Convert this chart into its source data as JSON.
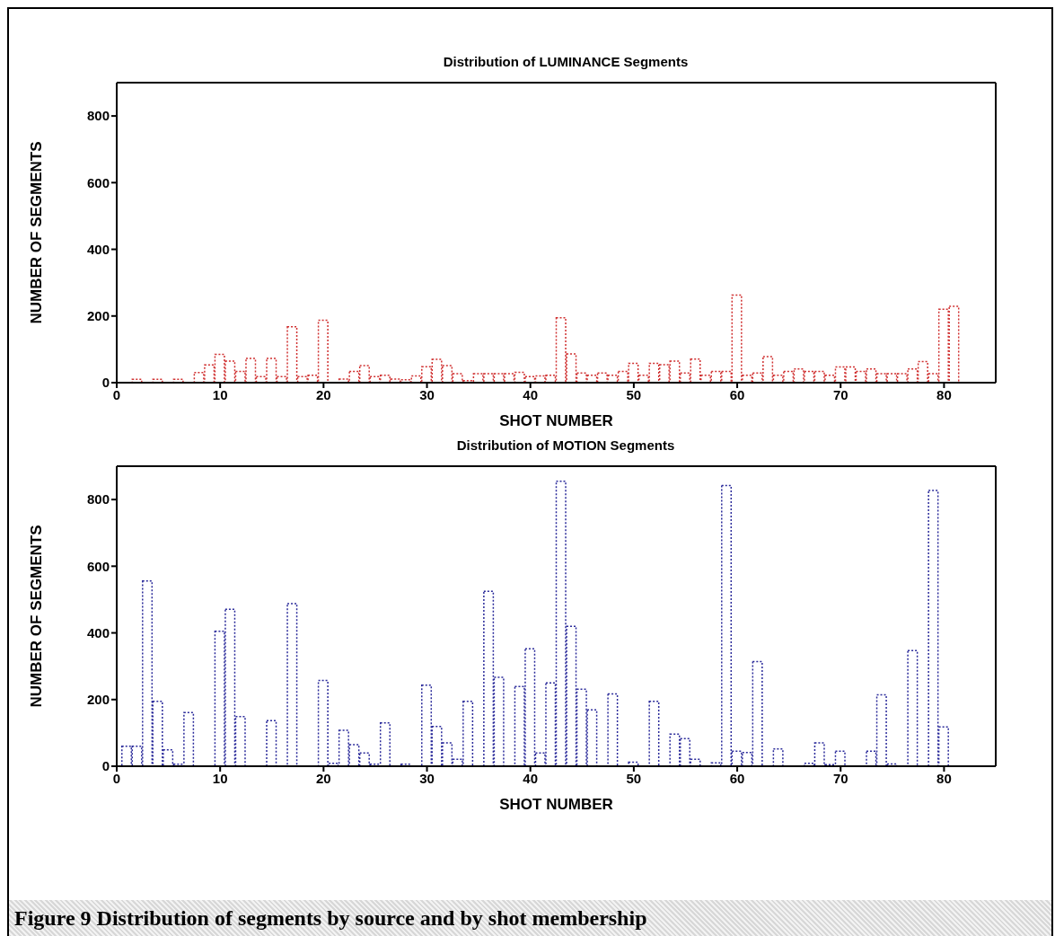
{
  "chart_data": [
    {
      "type": "histogram",
      "title": "Distribution of LUMINANCE Segments",
      "xlabel": "SHOT NUMBER",
      "ylabel": "NUMBER OF SEGMENTS",
      "color": "#d03030",
      "line_style": "dotted",
      "bins": [
        0.5,
        1.5,
        2.5,
        3.5,
        4.5,
        5.5,
        6.5,
        7.5,
        8.5,
        9.5,
        10.5,
        11.5,
        12.5,
        13.5,
        14.5,
        15.5,
        16.5,
        17.5,
        18.5,
        19.5,
        20.5,
        21.5,
        22.5,
        23.5,
        24.5,
        25.5,
        26.5,
        27.5,
        28.5,
        29.5,
        30.5,
        31.5,
        32.5,
        33.5,
        34.5,
        35.5,
        36.5,
        37.5,
        38.5,
        39.5,
        40.5,
        41.5,
        42.5,
        43.5,
        44.5,
        45.5,
        46.5,
        47.5,
        48.5,
        49.5,
        50.5,
        51.5,
        52.5,
        53.5,
        54.5,
        55.5,
        56.5,
        57.5,
        58.5,
        59.5,
        60.5,
        61.5,
        62.5,
        63.5,
        64.5,
        65.5,
        66.5,
        67.5,
        68.5,
        69.5,
        70.5,
        71.5,
        72.5,
        73.5,
        74.5,
        75.5,
        76.5,
        77.5,
        78.5,
        79.5,
        80.5,
        81.5
      ],
      "values": [
        0,
        10,
        null,
        10,
        null,
        10,
        0,
        30,
        53,
        85,
        65,
        34,
        73,
        18,
        73,
        18,
        168,
        18,
        22,
        187,
        0,
        11,
        34,
        51,
        18,
        22,
        11,
        9,
        20,
        48,
        70,
        51,
        27,
        6,
        27,
        27,
        27,
        27,
        31,
        18,
        20,
        22,
        195,
        86,
        29,
        22,
        29,
        22,
        34,
        58,
        22,
        58,
        54,
        65,
        29,
        71,
        22,
        34,
        34,
        263,
        22,
        29,
        78,
        22,
        34,
        41,
        34,
        34,
        22,
        47,
        47,
        34,
        41,
        27,
        27,
        27,
        41,
        63,
        27,
        220,
        229
      ],
      "xlim": [
        0,
        85
      ],
      "xticks": [
        0,
        10,
        20,
        30,
        40,
        50,
        60,
        70,
        80
      ],
      "ylim": [
        0,
        900
      ],
      "yticks": [
        0,
        200,
        400,
        600,
        800
      ]
    },
    {
      "type": "histogram",
      "title": "Distribution of MOTION Segments",
      "xlabel": "SHOT NUMBER",
      "ylabel": "NUMBER OF SEGMENTS",
      "color": "#2a2a9a",
      "line_style": "dotted",
      "bins": [
        0.5,
        1.5,
        2.5,
        3.5,
        4.5,
        5.5,
        6.5,
        7.5,
        8.5,
        9.5,
        10.5,
        11.5,
        12.5,
        13.5,
        14.5,
        15.5,
        16.5,
        17.5,
        18.5,
        19.5,
        20.5,
        21.5,
        22.5,
        23.5,
        24.5,
        25.5,
        26.5,
        27.5,
        28.5,
        29.5,
        30.5,
        31.5,
        32.5,
        33.5,
        34.5,
        35.5,
        36.5,
        37.5,
        38.5,
        39.5,
        40.5,
        41.5,
        42.5,
        43.5,
        44.5,
        45.5,
        46.5,
        47.5,
        48.5,
        49.5,
        50.5,
        51.5,
        52.5,
        53.5,
        54.5,
        55.5,
        56.5,
        57.5,
        58.5,
        59.5,
        60.5,
        61.5,
        62.5,
        63.5,
        64.5,
        65.5,
        66.5,
        67.5,
        68.5,
        69.5,
        70.5,
        71.5,
        72.5,
        73.5,
        74.5,
        75.5,
        76.5,
        77.5,
        78.5,
        79.5,
        80.5,
        81.5
      ],
      "values": [
        60,
        60,
        556,
        195,
        49,
        6,
        161,
        0,
        0,
        405,
        471,
        149,
        0,
        0,
        137,
        0,
        488,
        0,
        0,
        257,
        9,
        108,
        65,
        40,
        6,
        130,
        0,
        6,
        0,
        243,
        119,
        70,
        21,
        195,
        0,
        525,
        267,
        0,
        239,
        352,
        40,
        250,
        855,
        420,
        231,
        169,
        0,
        217,
        0,
        12,
        0,
        195,
        0,
        96,
        83,
        21,
        0,
        10,
        842,
        45,
        41,
        314,
        0,
        52,
        0,
        0,
        9,
        70,
        5,
        45,
        0,
        0,
        45,
        214,
        7,
        null,
        347,
        0,
        827,
        118,
        0
      ],
      "xlim": [
        0,
        85
      ],
      "xticks": [
        0,
        10,
        20,
        30,
        40,
        50,
        60,
        70,
        80
      ],
      "ylim": [
        0,
        900
      ],
      "yticks": [
        0,
        200,
        400,
        600,
        800
      ],
      "annotations": [
        "Figure 9 Distribution of segments by source and by shot membership"
      ]
    }
  ]
}
